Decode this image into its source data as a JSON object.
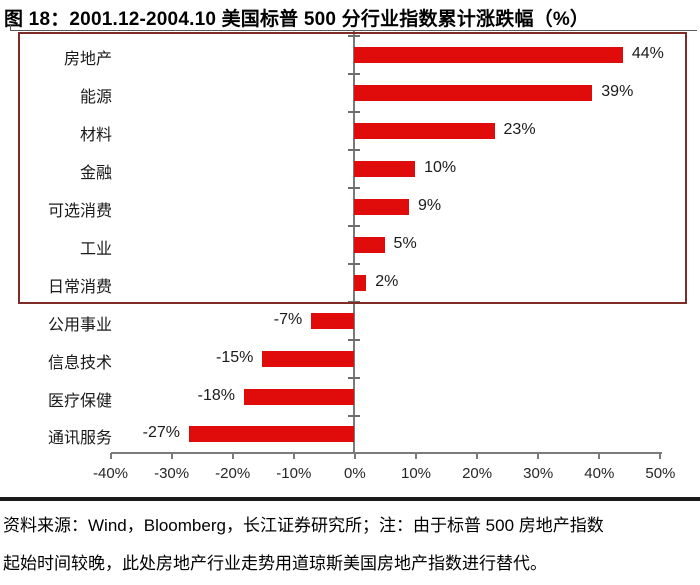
{
  "title": "图 18：2001.12-2004.10 美国标普 500 分行业指数累计涨跌幅（%）",
  "chart_data": {
    "type": "bar",
    "orientation": "horizontal",
    "title": "图 18：2001.12-2004.10 美国标普 500 分行业指数累计涨跌幅（%）",
    "categories": [
      "房地产",
      "能源",
      "材料",
      "金融",
      "可选消费",
      "工业",
      "日常消费",
      "公用事业",
      "信息技术",
      "医疗保健",
      "通讯服务"
    ],
    "values": [
      44,
      39,
      23,
      10,
      9,
      5,
      2,
      -7,
      -15,
      -18,
      -27
    ],
    "data_labels": [
      "44%",
      "39%",
      "23%",
      "10%",
      "9%",
      "5%",
      "2%",
      "-7%",
      "-15%",
      "-18%",
      "-27%"
    ],
    "xlim": [
      -40,
      50
    ],
    "x_tick_labels": [
      "-40%",
      "-30%",
      "-20%",
      "-10%",
      "0%",
      "10%",
      "20%",
      "30%",
      "40%",
      "50%"
    ],
    "grid": false,
    "legend": "none",
    "bar_color": "#e00b0b",
    "highlight_box_color": "#7d2c27",
    "highlight_box_categories": [
      "房地产",
      "能源",
      "材料",
      "金融",
      "可选消费",
      "工业",
      "日常消费"
    ]
  },
  "footer": {
    "line1": "资料来源：Wind，Bloomberg，长江证券研究所；注：由于标普 500 房地产指数",
    "line2": "起始时间较晚，此处房地产行业走势用道琼斯美国房地产指数进行替代。"
  }
}
